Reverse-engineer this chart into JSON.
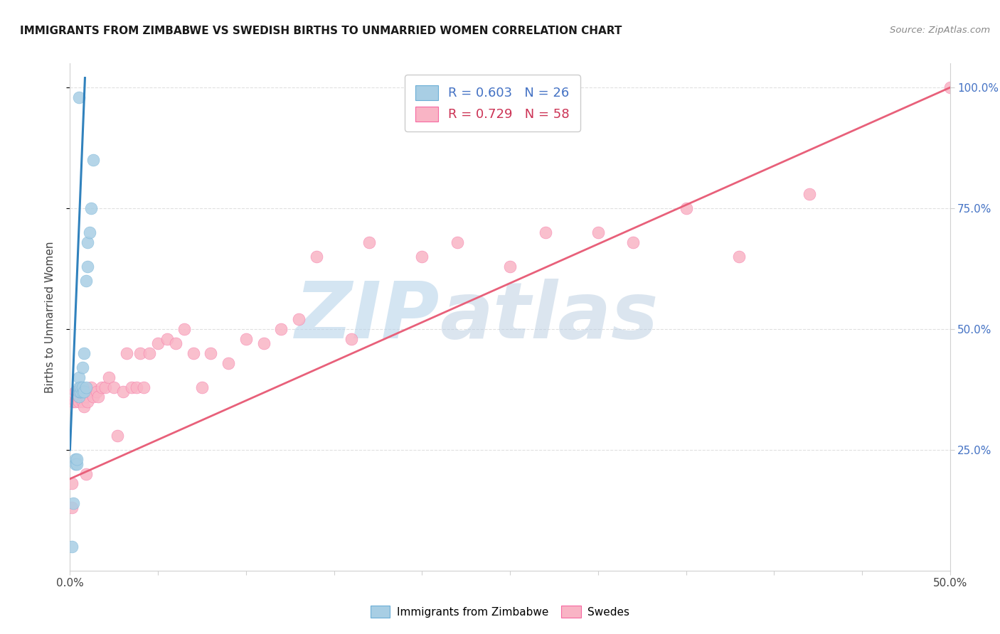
{
  "title": "IMMIGRANTS FROM ZIMBABWE VS SWEDISH BIRTHS TO UNMARRIED WOMEN CORRELATION CHART",
  "source": "Source: ZipAtlas.com",
  "ylabel": "Births to Unmarried Women",
  "xlim": [
    0.0,
    0.5
  ],
  "ylim": [
    0.0,
    1.05
  ],
  "xticks": [
    0.0,
    0.05,
    0.1,
    0.15,
    0.2,
    0.25,
    0.3,
    0.35,
    0.4,
    0.45,
    0.5
  ],
  "xtick_labels": [
    "0.0%",
    "",
    "",
    "",
    "",
    "",
    "",
    "",
    "",
    "",
    "50.0%"
  ],
  "yticks": [
    0.25,
    0.5,
    0.75,
    1.0
  ],
  "ytick_labels": [
    "25.0%",
    "50.0%",
    "75.0%",
    "100.0%"
  ],
  "legend1_label": "R = 0.603   N = 26",
  "legend2_label": "R = 0.729   N = 58",
  "blue_color": "#a8cee4",
  "pink_color": "#f9b4c5",
  "blue_edge_color": "#6baed6",
  "pink_edge_color": "#f768a1",
  "blue_line_color": "#3182bd",
  "pink_line_color": "#e8607a",
  "watermark": "ZIPatlas",
  "watermark_color_zip": "#b8d4ea",
  "watermark_color_atlas": "#b8cce0",
  "blue_points_x": [
    0.001,
    0.002,
    0.003,
    0.003,
    0.004,
    0.004,
    0.005,
    0.005,
    0.005,
    0.005,
    0.006,
    0.006,
    0.006,
    0.007,
    0.007,
    0.007,
    0.008,
    0.008,
    0.009,
    0.009,
    0.01,
    0.01,
    0.011,
    0.012,
    0.013,
    0.005
  ],
  "blue_points_y": [
    0.05,
    0.14,
    0.23,
    0.22,
    0.22,
    0.23,
    0.36,
    0.37,
    0.38,
    0.4,
    0.37,
    0.37,
    0.38,
    0.37,
    0.38,
    0.42,
    0.37,
    0.45,
    0.38,
    0.6,
    0.63,
    0.68,
    0.7,
    0.75,
    0.85,
    0.98
  ],
  "pink_points_x": [
    0.001,
    0.001,
    0.002,
    0.003,
    0.003,
    0.004,
    0.005,
    0.005,
    0.006,
    0.006,
    0.007,
    0.008,
    0.008,
    0.009,
    0.009,
    0.01,
    0.01,
    0.012,
    0.013,
    0.015,
    0.016,
    0.018,
    0.02,
    0.022,
    0.025,
    0.027,
    0.03,
    0.032,
    0.035,
    0.038,
    0.04,
    0.042,
    0.045,
    0.05,
    0.055,
    0.06,
    0.065,
    0.07,
    0.075,
    0.08,
    0.09,
    0.1,
    0.11,
    0.12,
    0.13,
    0.14,
    0.16,
    0.17,
    0.2,
    0.22,
    0.25,
    0.27,
    0.3,
    0.32,
    0.35,
    0.38,
    0.42,
    0.5
  ],
  "pink_points_y": [
    0.18,
    0.13,
    0.35,
    0.35,
    0.37,
    0.36,
    0.35,
    0.36,
    0.36,
    0.37,
    0.35,
    0.36,
    0.34,
    0.36,
    0.2,
    0.37,
    0.35,
    0.38,
    0.36,
    0.37,
    0.36,
    0.38,
    0.38,
    0.4,
    0.38,
    0.28,
    0.37,
    0.45,
    0.38,
    0.38,
    0.45,
    0.38,
    0.45,
    0.47,
    0.48,
    0.47,
    0.5,
    0.45,
    0.38,
    0.45,
    0.43,
    0.48,
    0.47,
    0.5,
    0.52,
    0.65,
    0.48,
    0.68,
    0.65,
    0.68,
    0.63,
    0.7,
    0.7,
    0.68,
    0.75,
    0.65,
    0.78,
    1.0
  ],
  "blue_trend_x": [
    0.0,
    0.0085
  ],
  "blue_trend_y": [
    0.25,
    1.02
  ],
  "pink_trend_x": [
    0.0,
    0.5
  ],
  "pink_trend_y": [
    0.19,
    1.0
  ]
}
